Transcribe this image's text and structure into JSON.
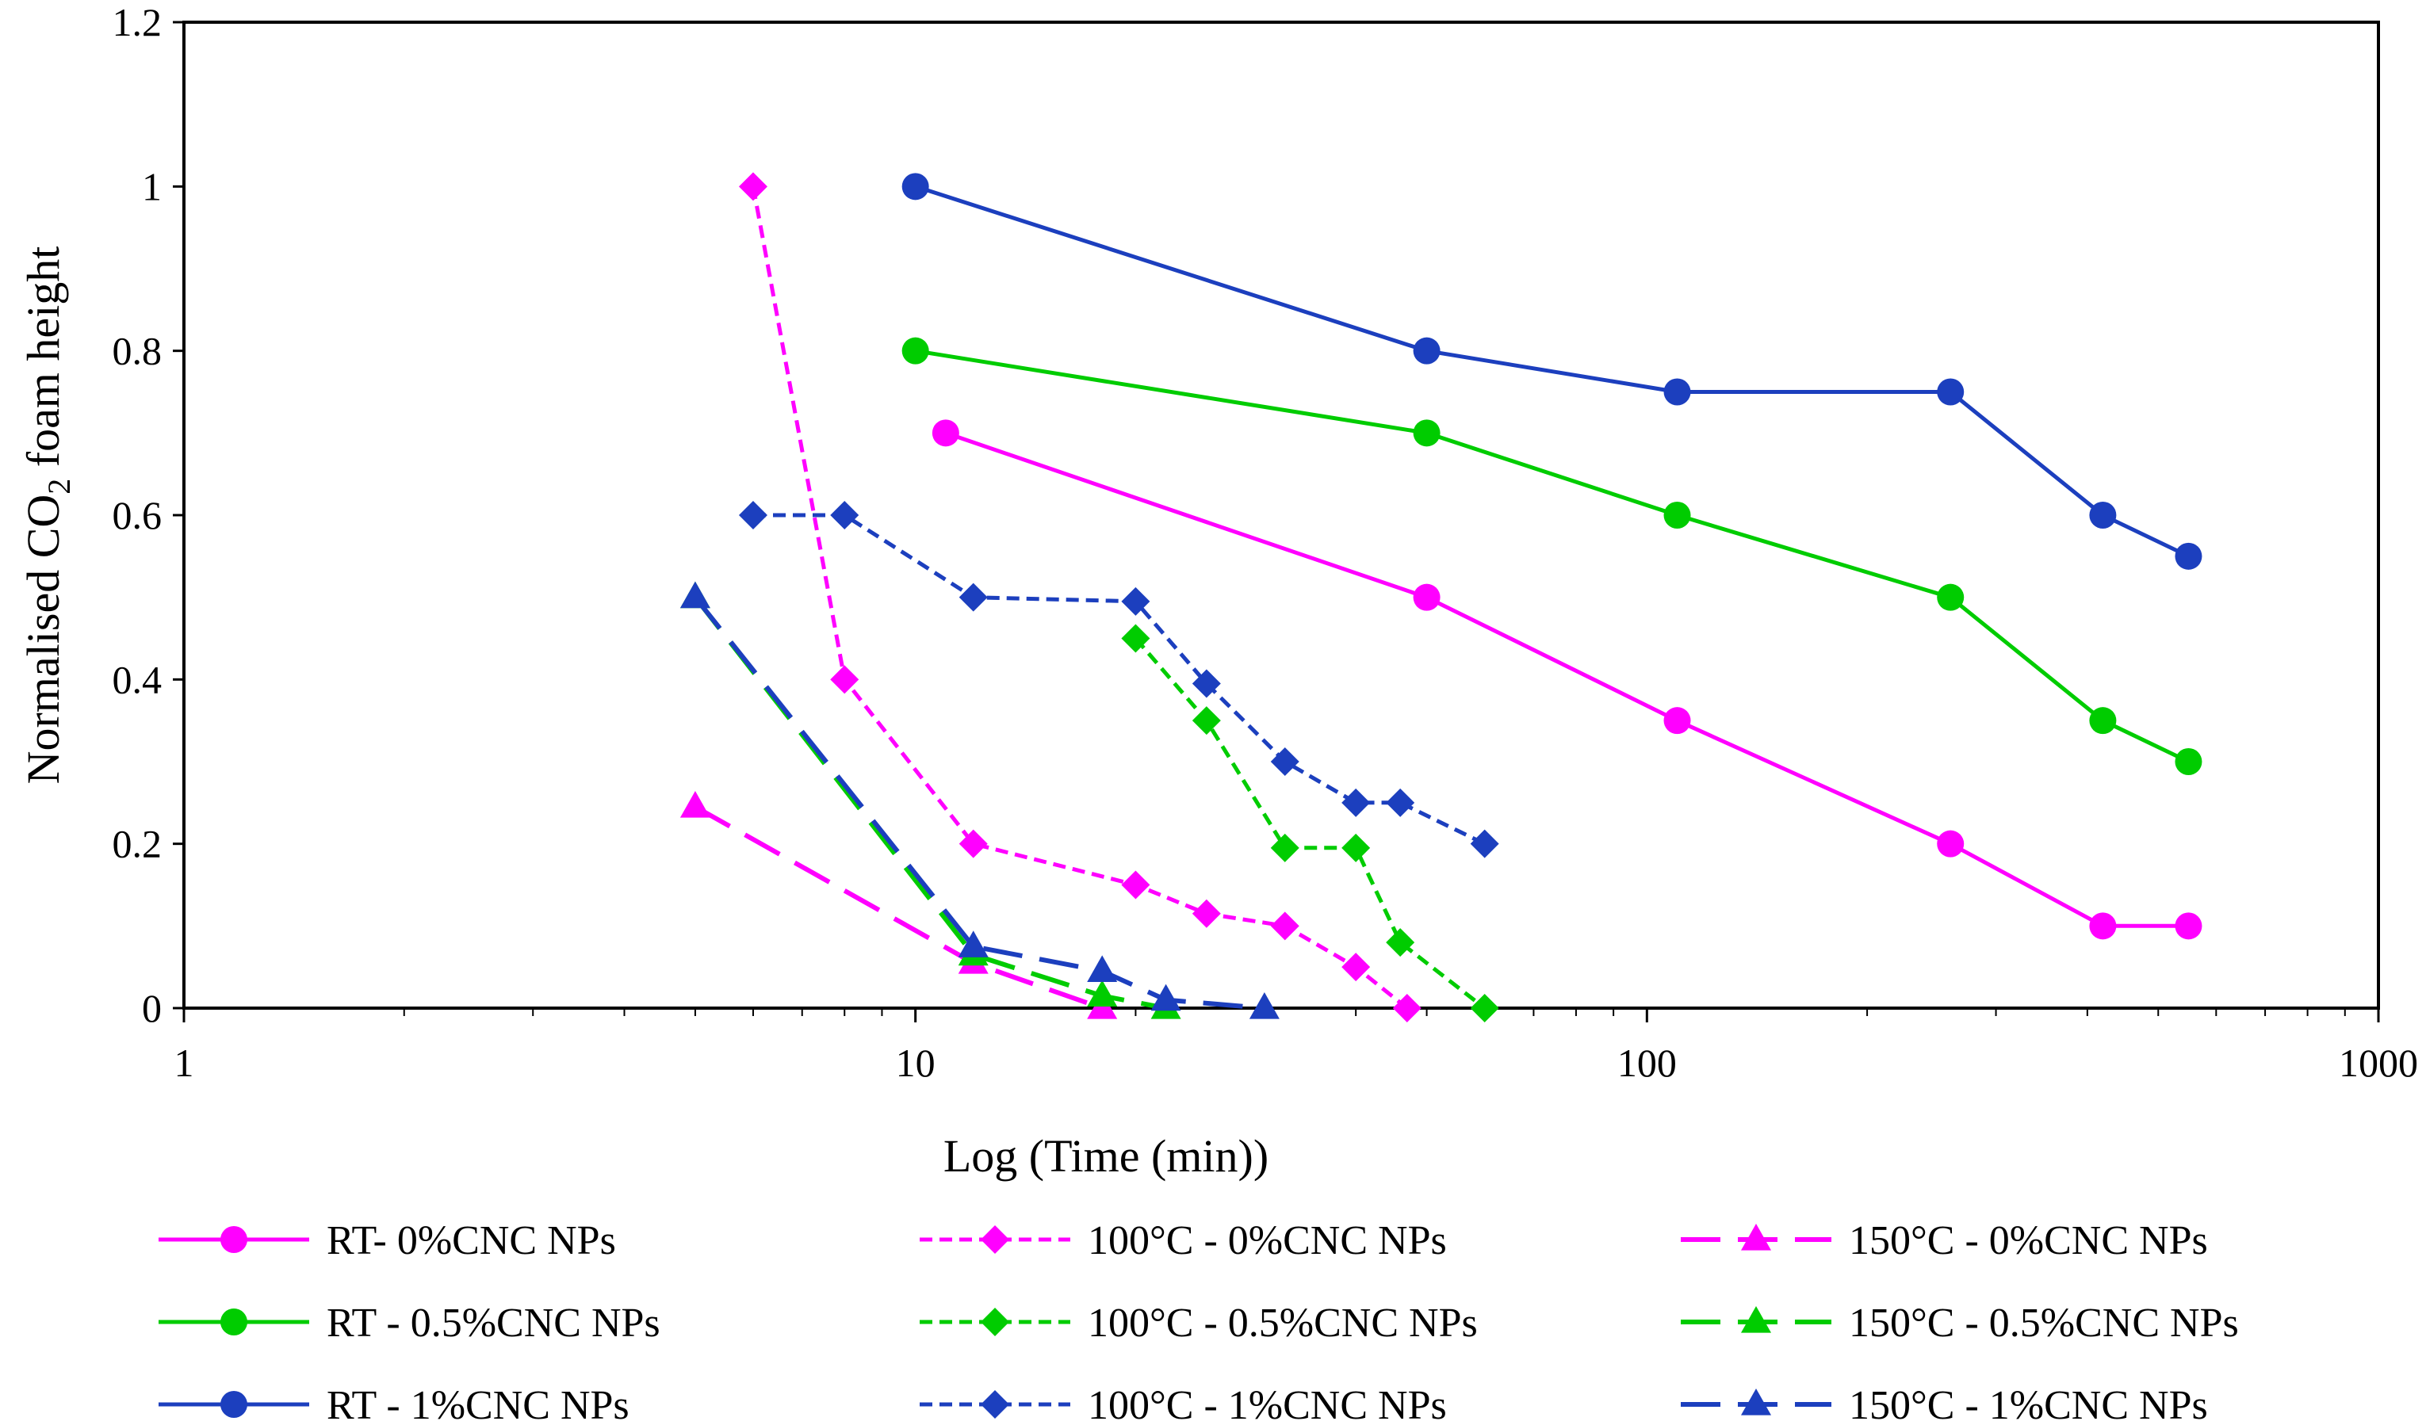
{
  "chart_data": {
    "type": "line",
    "xlabel": "Log (Time (min))",
    "ylabel": "Normalised CO2 foam height",
    "ylabel_parts": {
      "before": "Normalised CO",
      "subscript": "2",
      "after": " foam height"
    },
    "x_scale": "log",
    "xlim": [
      1,
      1000
    ],
    "ylim": [
      0,
      1.2
    ],
    "x_ticks": [
      1,
      10,
      100,
      1000
    ],
    "x_tick_labels": [
      "1",
      "10",
      "100",
      "1000"
    ],
    "y_ticks": [
      0,
      0.2,
      0.4,
      0.6,
      0.8,
      1.0,
      1.2
    ],
    "y_tick_labels": [
      "0",
      "0.2",
      "0.4",
      "0.6",
      "0.8",
      "1",
      "1.2"
    ],
    "grid": false,
    "legend_position": "bottom",
    "colors": {
      "magenta": "#ff00ff",
      "green": "#00cc00",
      "blue": "#1c3fbe"
    },
    "series": [
      {
        "name": "RT- 0%CNC NPs",
        "color": "#ff00ff",
        "dash": "solid",
        "marker": "circle",
        "x": [
          11,
          50,
          110,
          260,
          420,
          550
        ],
        "y": [
          0.7,
          0.5,
          0.35,
          0.2,
          0.1,
          0.1
        ]
      },
      {
        "name": "RT - 0.5%CNC NPs",
        "color": "#00cc00",
        "dash": "solid",
        "marker": "circle",
        "x": [
          10,
          50,
          110,
          260,
          420,
          550
        ],
        "y": [
          0.8,
          0.7,
          0.6,
          0.5,
          0.35,
          0.3
        ]
      },
      {
        "name": "RT - 1%CNC NPs",
        "color": "#1c3fbe",
        "dash": "solid",
        "marker": "circle",
        "x": [
          10,
          50,
          110,
          260,
          420,
          550
        ],
        "y": [
          1.0,
          0.8,
          0.75,
          0.75,
          0.6,
          0.55
        ]
      },
      {
        "name": "100°C - 0%CNC NPs",
        "color": "#ff00ff",
        "dash": "short",
        "marker": "diamond",
        "x": [
          6,
          8,
          12,
          20,
          25,
          32,
          40,
          47
        ],
        "y": [
          1.0,
          0.4,
          0.2,
          0.15,
          0.115,
          0.1,
          0.05,
          0.0
        ]
      },
      {
        "name": "100°C - 0.5%CNC NPs",
        "color": "#00cc00",
        "dash": "short",
        "marker": "diamond",
        "x": [
          20,
          25,
          32,
          40,
          46,
          60
        ],
        "y": [
          0.45,
          0.35,
          0.195,
          0.195,
          0.08,
          0.0
        ]
      },
      {
        "name": "100°C - 1%CNC NPs",
        "color": "#1c3fbe",
        "dash": "short",
        "marker": "diamond",
        "x": [
          6,
          8,
          12,
          20,
          25,
          32,
          40,
          46,
          60
        ],
        "y": [
          0.6,
          0.6,
          0.5,
          0.495,
          0.395,
          0.3,
          0.25,
          0.25,
          0.2
        ]
      },
      {
        "name": "150°C - 0%CNC NPs",
        "color": "#ff00ff",
        "dash": "long",
        "marker": "triangle",
        "x": [
          5,
          12,
          18
        ],
        "y": [
          0.245,
          0.055,
          0.0
        ]
      },
      {
        "name": "150°C - 0.5%CNC NPs",
        "color": "#00cc00",
        "dash": "long",
        "marker": "triangle",
        "x": [
          5,
          12,
          18,
          22
        ],
        "y": [
          0.5,
          0.065,
          0.015,
          0.0
        ]
      },
      {
        "name": "150°C - 1%CNC NPs",
        "color": "#1c3fbe",
        "dash": "long",
        "marker": "triangle",
        "x": [
          5,
          12,
          18,
          22,
          30
        ],
        "y": [
          0.5,
          0.075,
          0.045,
          0.01,
          0.0
        ]
      }
    ]
  }
}
